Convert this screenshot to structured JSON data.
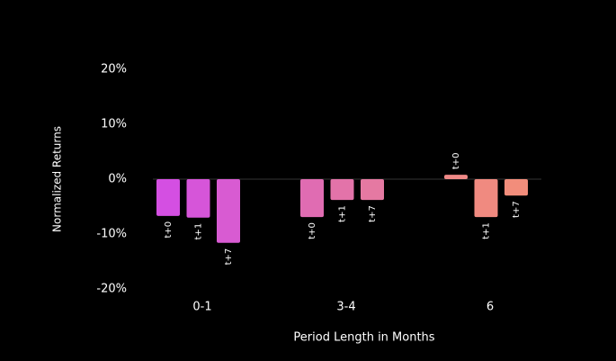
{
  "chart_data": {
    "type": "bar",
    "x_label": "Period Length in Months",
    "y_label": "Normalized Returns",
    "categories": [
      "0-1",
      "3-4",
      "6"
    ],
    "series": [
      {
        "name": "t+0",
        "colors": [
          "#d44fe2",
          "#e06cb2",
          "#ef8987"
        ],
        "values": [
          -6.7,
          -6.9,
          0.8
        ]
      },
      {
        "name": "t+1",
        "colors": [
          "#d655d9",
          "#e373a9",
          "#f08a80"
        ],
        "values": [
          -7.0,
          -3.8,
          -6.9
        ]
      },
      {
        "name": "t+7",
        "colors": [
          "#d85bd2",
          "#e579a2",
          "#f28d7b"
        ],
        "values": [
          -11.6,
          -3.8,
          -3.0
        ]
      }
    ],
    "ylim": [
      -20,
      20
    ],
    "yticks": [
      {
        "value": -20,
        "label": "-20%"
      },
      {
        "value": -10,
        "label": "-10%"
      },
      {
        "value": 0,
        "label": "0%"
      },
      {
        "value": 10,
        "label": "10%"
      },
      {
        "value": 20,
        "label": "20%"
      }
    ]
  }
}
